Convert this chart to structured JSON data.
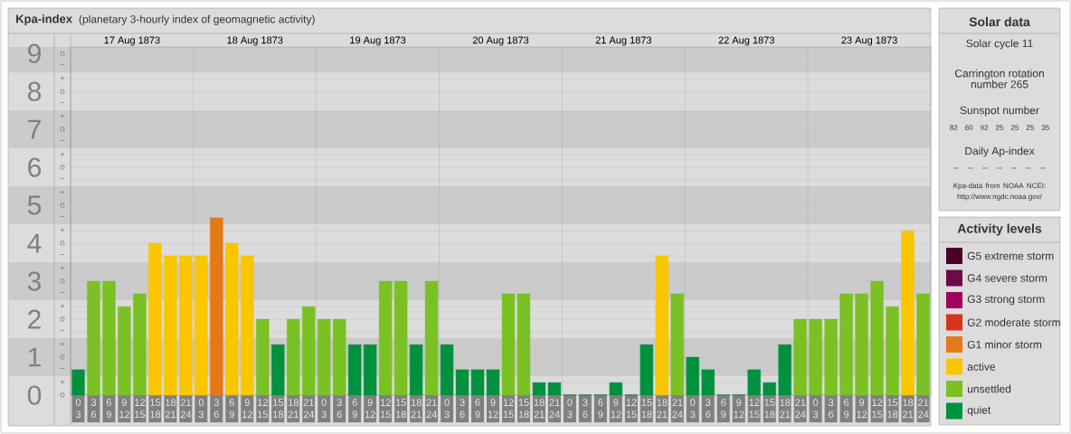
{
  "chart_data": [
    {
      "type": "bar",
      "title": "Kpa-index",
      "subtitle": "(planetary 3-hourly index of geomagnetic activity)",
      "categories": [
        "0 3",
        "3 6",
        "6 9",
        "9 12",
        "12 15",
        "15 18",
        "18 21",
        "21 24",
        "0 3",
        "3 6",
        "6 9",
        "9 12",
        "12 15",
        "15 18",
        "18 21",
        "21 24",
        "0 3",
        "3 6",
        "6 9",
        "9 12",
        "12 15",
        "15 18",
        "18 21",
        "21 24",
        "0 3",
        "3 6",
        "6 9",
        "9 12",
        "12 15",
        "15 18",
        "18 21",
        "21 24",
        "0 3",
        "3 6",
        "6 9",
        "9 12",
        "12 15",
        "15 18",
        "18 21",
        "21 24",
        "0 3",
        "3 6",
        "6 9",
        "9 12",
        "12 15",
        "15 18",
        "18 21",
        "21 24",
        "0 3",
        "3 6",
        "6 9",
        "9 12",
        "12 15",
        "15 18",
        "18 21",
        "21 24"
      ],
      "series": [
        {
          "name": "G5 extreme storm",
          "color": "#4a0027",
          "values": [
            null,
            null,
            null,
            null,
            null,
            null,
            null,
            null,
            null,
            null,
            null,
            null,
            null,
            null,
            null,
            null,
            null,
            null,
            null,
            null,
            null,
            null,
            null,
            null,
            null,
            null,
            null,
            null,
            null,
            null,
            null,
            null,
            null,
            null,
            null,
            null,
            null,
            null,
            null,
            null,
            null,
            null,
            null,
            null,
            null,
            null,
            null,
            null,
            null,
            null,
            null,
            null,
            null,
            null,
            null,
            null
          ]
        },
        {
          "name": "G4 severe storm",
          "color": "#6e0a45",
          "values": [
            null,
            null,
            null,
            null,
            null,
            null,
            null,
            null,
            null,
            null,
            null,
            null,
            null,
            null,
            null,
            null,
            null,
            null,
            null,
            null,
            null,
            null,
            null,
            null,
            null,
            null,
            null,
            null,
            null,
            null,
            null,
            null,
            null,
            null,
            null,
            null,
            null,
            null,
            null,
            null,
            null,
            null,
            null,
            null,
            null,
            null,
            null,
            null,
            null,
            null,
            null,
            null,
            null,
            null,
            null,
            null
          ]
        },
        {
          "name": "G3 strong storm",
          "color": "#a1005c",
          "values": [
            null,
            null,
            null,
            null,
            null,
            null,
            null,
            null,
            null,
            null,
            null,
            null,
            null,
            null,
            null,
            null,
            null,
            null,
            null,
            null,
            null,
            null,
            null,
            null,
            null,
            null,
            null,
            null,
            null,
            null,
            null,
            null,
            null,
            null,
            null,
            null,
            null,
            null,
            null,
            null,
            null,
            null,
            null,
            null,
            null,
            null,
            null,
            null,
            null,
            null,
            null,
            null,
            null,
            null,
            null,
            null
          ]
        },
        {
          "name": "G2 moderate storm",
          "color": "#d9331c",
          "values": [
            null,
            null,
            null,
            null,
            null,
            null,
            null,
            null,
            null,
            null,
            null,
            null,
            null,
            null,
            null,
            null,
            null,
            null,
            null,
            null,
            null,
            null,
            null,
            null,
            null,
            null,
            null,
            null,
            null,
            null,
            null,
            null,
            null,
            null,
            null,
            null,
            null,
            null,
            null,
            null,
            null,
            null,
            null,
            null,
            null,
            null,
            null,
            null,
            null,
            null,
            null,
            null,
            null,
            null,
            null,
            null
          ]
        },
        {
          "name": "G1 minor storm",
          "color": "#e57817",
          "values": [
            null,
            null,
            null,
            null,
            null,
            null,
            null,
            null,
            null,
            4.67,
            null,
            null,
            null,
            null,
            null,
            null,
            null,
            null,
            null,
            null,
            null,
            null,
            null,
            null,
            null,
            null,
            null,
            null,
            null,
            null,
            null,
            null,
            null,
            null,
            null,
            null,
            null,
            null,
            null,
            null,
            null,
            null,
            null,
            null,
            null,
            null,
            null,
            null,
            null,
            null,
            null,
            null,
            null,
            null,
            null,
            null
          ]
        },
        {
          "name": "active",
          "color": "#f9c600",
          "values": [
            null,
            null,
            null,
            null,
            null,
            4,
            3.67,
            3.67,
            3.67,
            null,
            4,
            3.67,
            null,
            null,
            null,
            null,
            null,
            null,
            null,
            null,
            null,
            null,
            null,
            null,
            null,
            null,
            null,
            null,
            null,
            null,
            null,
            null,
            null,
            null,
            null,
            null,
            null,
            null,
            3.67,
            null,
            null,
            null,
            null,
            null,
            null,
            null,
            null,
            null,
            null,
            null,
            null,
            null,
            null,
            null,
            4.33,
            null
          ]
        },
        {
          "name": "unsettled",
          "color": "#7ac124",
          "values": [
            null,
            3,
            3,
            2.33,
            2.67,
            null,
            null,
            null,
            null,
            null,
            null,
            null,
            2,
            null,
            2,
            2.33,
            2,
            2,
            null,
            null,
            3,
            3,
            null,
            3,
            null,
            null,
            null,
            null,
            2.67,
            2.67,
            null,
            null,
            null,
            null,
            null,
            null,
            null,
            null,
            null,
            2.67,
            null,
            null,
            null,
            null,
            null,
            null,
            null,
            2,
            2,
            2,
            2.67,
            2.67,
            3,
            2.33,
            null,
            2.67
          ]
        },
        {
          "name": "quiet",
          "color": "#00913f",
          "values": [
            0.67,
            null,
            null,
            null,
            null,
            null,
            null,
            null,
            null,
            null,
            null,
            null,
            null,
            1.33,
            null,
            null,
            null,
            null,
            1.33,
            1.33,
            null,
            null,
            1.33,
            null,
            1.33,
            0.67,
            0.67,
            0.67,
            null,
            null,
            0.33,
            0.33,
            0,
            0,
            0,
            0.33,
            0,
            1.33,
            null,
            null,
            1,
            0.67,
            0,
            0,
            0.67,
            0.33,
            1.33,
            null,
            null,
            null,
            null,
            null,
            null,
            null,
            null,
            null
          ]
        }
      ],
      "ylim": [
        0,
        9.17
      ],
      "yticks": [
        0,
        1,
        2,
        3,
        4,
        5,
        6,
        7,
        8,
        9
      ],
      "annotations": [
        "o",
        "+",
        "−",
        "o",
        "+",
        "−",
        "o",
        "+",
        "−",
        "o",
        "+",
        "−",
        "o",
        "+",
        "−",
        "o",
        "+",
        "−",
        "o",
        "+",
        "−",
        "o",
        "+",
        "−",
        "o",
        "+",
        "−",
        "o"
      ],
      "x2lim": [
        "1873-08-17",
        "1873-08-24"
      ],
      "x2ticks": [
        {
          "value": "1873-08-17T12:00",
          "label": "17 Aug 1873"
        },
        {
          "value": "1873-08-18",
          "label": null
        },
        {
          "value": "1873-08-18T12:00",
          "label": "18 Aug 1873"
        },
        {
          "value": "1873-08-19",
          "label": null
        },
        {
          "value": "1873-08-19T12:00",
          "label": "19 Aug 1873"
        },
        {
          "value": "1873-08-20",
          "label": null
        },
        {
          "value": "1873-08-20T12:00",
          "label": "20 Aug 1873"
        },
        {
          "value": "1873-08-21",
          "label": null
        },
        {
          "value": "1873-08-21T12:00",
          "label": "21 Aug 1873"
        },
        {
          "value": "1873-08-22",
          "label": null
        },
        {
          "value": "1873-08-22T12:00",
          "label": "22 Aug 1873"
        },
        {
          "value": "1873-08-23",
          "label": null
        },
        {
          "value": "1873-08-23T12:00",
          "label": "23 Aug 1873"
        }
      ],
      "bands": [
        {
          "axis": "y",
          "from": 0.5,
          "to": 1.5,
          "color": "#cbcbcb"
        },
        {
          "axis": "y",
          "from": 2.5,
          "to": 3.5,
          "color": "#cbcbcb"
        },
        {
          "axis": "y",
          "from": 4.5,
          "to": 5.5,
          "color": "#cbcbcb"
        },
        {
          "axis": "y",
          "from": 6.5,
          "to": 7.5,
          "color": "#cbcbcb"
        },
        {
          "axis": "y",
          "from": 8.5,
          "to": 9.17,
          "color": "#cbcbcb"
        }
      ],
      "grid": true,
      "legend": "right",
      "legend_title": "Activity levels"
    },
    {
      "type": "other",
      "title": "Solar data",
      "annotations": [
        "Solar cycle 11",
        "Carrington rotation number 265",
        "Sunspot number",
        "82 60 92 25 25 25 35",
        "Daily Ap-index",
        "-- -- -- -- -- -- --",
        "Kpa-data from NOAA NCEI: http://www.ngdc.noaa.gov/"
      ]
    }
  ]
}
